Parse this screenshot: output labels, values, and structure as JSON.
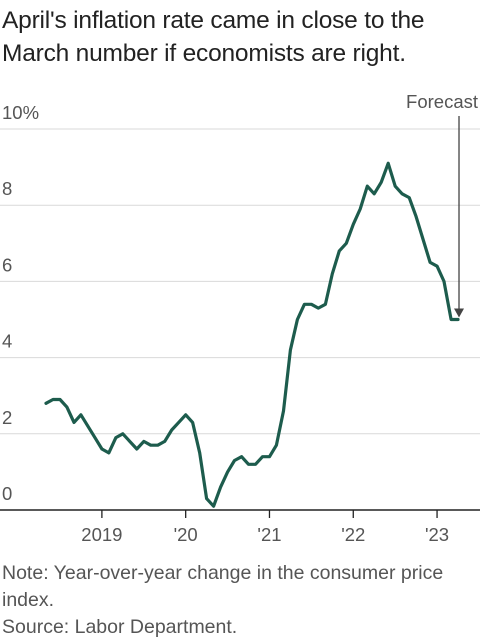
{
  "title": "April's inflation rate came in close to the March number if economists are right.",
  "note": "Note: Year-over-year change in the consumer price index.",
  "source": "Source: Labor Department.",
  "annotation": {
    "label": "Forecast"
  },
  "colors": {
    "line": "#1d5c4d",
    "grid": "#d9d9d9",
    "axis": "#222222",
    "text": "#555555",
    "arrow": "#444444"
  },
  "chart_data": {
    "type": "line",
    "title": "April's inflation rate came in close to the March number if economists are right.",
    "xlabel": "",
    "ylabel": "",
    "ylim": [
      0,
      10
    ],
    "yticks": [
      {
        "value": 0,
        "label": "0"
      },
      {
        "value": 2,
        "label": "2"
      },
      {
        "value": 4,
        "label": "4"
      },
      {
        "value": 6,
        "label": "6"
      },
      {
        "value": 8,
        "label": "8"
      },
      {
        "value": 10,
        "label": "10%"
      }
    ],
    "xticks": [
      {
        "value": 2019.0,
        "label": "2019"
      },
      {
        "value": 2020.0,
        "label": "'20"
      },
      {
        "value": 2021.0,
        "label": "'21"
      },
      {
        "value": 2022.0,
        "label": "'22"
      },
      {
        "value": 2023.0,
        "label": "'23"
      }
    ],
    "grid": true,
    "series": [
      {
        "x": [
          2018.333,
          2018.417,
          2018.5,
          2018.583,
          2018.667,
          2018.75,
          2018.833,
          2018.917,
          2019.0,
          2019.083,
          2019.167,
          2019.25,
          2019.333,
          2019.417,
          2019.5,
          2019.583,
          2019.667,
          2019.75,
          2019.833,
          2019.917,
          2020.0,
          2020.083,
          2020.167,
          2020.25,
          2020.333,
          2020.417,
          2020.5,
          2020.583,
          2020.667,
          2020.75,
          2020.833,
          2020.917,
          2021.0,
          2021.083,
          2021.167,
          2021.25,
          2021.333,
          2021.417,
          2021.5,
          2021.583,
          2021.667,
          2021.75,
          2021.833,
          2021.917,
          2022.0,
          2022.083,
          2022.167,
          2022.25,
          2022.333,
          2022.417,
          2022.5,
          2022.583,
          2022.667,
          2022.75,
          2022.833,
          2022.917,
          2023.0,
          2023.083,
          2023.167,
          2023.25
        ],
        "values": [
          2.8,
          2.9,
          2.9,
          2.7,
          2.3,
          2.5,
          2.2,
          1.9,
          1.6,
          1.5,
          1.9,
          2.0,
          1.8,
          1.6,
          1.8,
          1.7,
          1.7,
          1.8,
          2.1,
          2.3,
          2.5,
          2.3,
          1.5,
          0.3,
          0.1,
          0.6,
          1.0,
          1.3,
          1.4,
          1.2,
          1.2,
          1.4,
          1.4,
          1.7,
          2.6,
          4.2,
          5.0,
          5.4,
          5.4,
          5.3,
          5.4,
          6.2,
          6.8,
          7.0,
          7.5,
          7.9,
          8.5,
          8.3,
          8.6,
          9.1,
          8.5,
          8.3,
          8.2,
          7.7,
          7.1,
          6.5,
          6.4,
          6.0,
          5.0,
          5.0
        ]
      }
    ],
    "forecast": {
      "x": 2023.25,
      "value": 5.0
    }
  }
}
